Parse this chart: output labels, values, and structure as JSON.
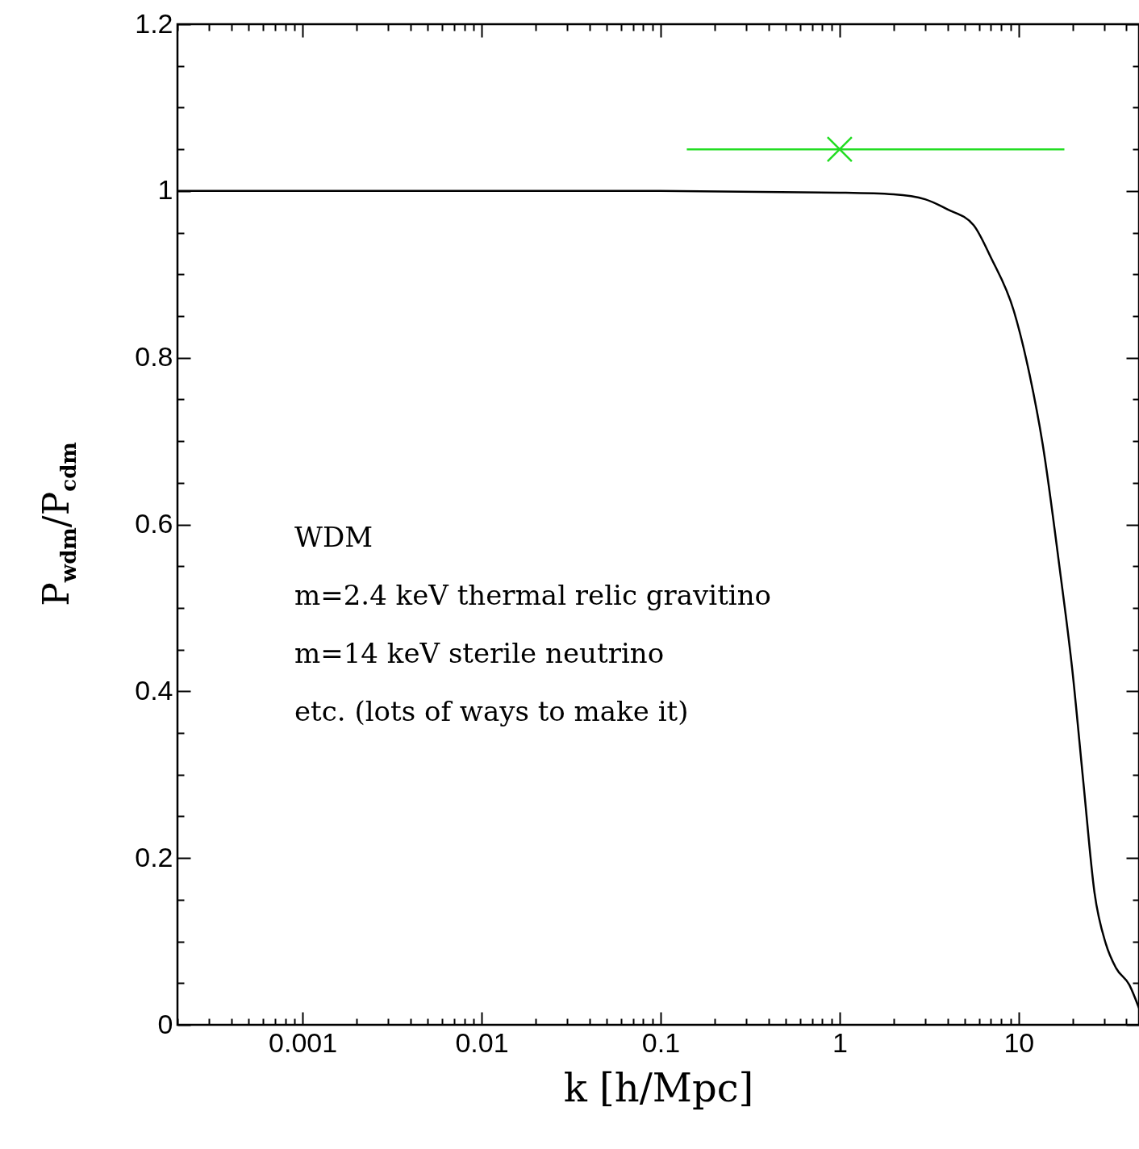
{
  "chart_data": {
    "type": "line",
    "xlabel": "k [h/Mpc]",
    "ylabel": "P$_{wdm}$/P$_{cdm}$",
    "log": "x",
    "grid": false,
    "xlim": [
      0.0002,
      47
    ],
    "ylim": [
      0,
      1.2
    ],
    "xticks": [
      {
        "value": 0.0002,
        "label": null
      },
      {
        "value": 0.0003,
        "label": null
      },
      {
        "value": 0.0004,
        "label": null
      },
      {
        "value": 0.0005,
        "label": null
      },
      {
        "value": 0.0006,
        "label": null
      },
      {
        "value": 0.0007,
        "label": null
      },
      {
        "value": 0.0008,
        "label": null
      },
      {
        "value": 0.0009,
        "label": null
      },
      0.001,
      {
        "value": 0.002,
        "label": null
      },
      {
        "value": 0.003,
        "label": null
      },
      {
        "value": 0.004,
        "label": null
      },
      {
        "value": 0.005,
        "label": null
      },
      {
        "value": 0.006,
        "label": null
      },
      {
        "value": 0.007,
        "label": null
      },
      {
        "value": 0.008,
        "label": null
      },
      {
        "value": 0.009,
        "label": null
      },
      0.01,
      {
        "value": 0.02,
        "label": null
      },
      {
        "value": 0.03,
        "label": null
      },
      {
        "value": 0.04,
        "label": null
      },
      {
        "value": 0.05,
        "label": null
      },
      {
        "value": 0.06,
        "label": null
      },
      {
        "value": 0.07,
        "label": null
      },
      {
        "value": 0.08,
        "label": null
      },
      {
        "value": 0.09,
        "label": null
      },
      0.1,
      {
        "value": 0.2,
        "label": null
      },
      {
        "value": 0.3,
        "label": null
      },
      {
        "value": 0.4,
        "label": null
      },
      {
        "value": 0.5,
        "label": null
      },
      {
        "value": 0.6,
        "label": null
      },
      {
        "value": 0.7,
        "label": null
      },
      {
        "value": 0.8,
        "label": null
      },
      {
        "value": 0.9,
        "label": null
      },
      1,
      {
        "value": 2,
        "label": null
      },
      {
        "value": 3,
        "label": null
      },
      {
        "value": 4,
        "label": null
      },
      {
        "value": 5,
        "label": null
      },
      {
        "value": 6,
        "label": null
      },
      {
        "value": 7,
        "label": null
      },
      {
        "value": 8,
        "label": null
      },
      {
        "value": 9,
        "label": null
      },
      10,
      {
        "value": 20,
        "label": null
      },
      {
        "value": 30,
        "label": null
      },
      {
        "value": 40,
        "label": null
      }
    ],
    "yticks": [
      0,
      {
        "value": 0.05,
        "label": null
      },
      {
        "value": 0.1,
        "label": null
      },
      {
        "value": 0.15,
        "label": null
      },
      0.2,
      {
        "value": 0.25,
        "label": null
      },
      {
        "value": 0.3,
        "label": null
      },
      {
        "value": 0.35,
        "label": null
      },
      0.4,
      {
        "value": 0.45,
        "label": null
      },
      {
        "value": 0.5,
        "label": null
      },
      {
        "value": 0.55,
        "label": null
      },
      0.6,
      {
        "value": 0.65,
        "label": null
      },
      {
        "value": 0.7,
        "label": null
      },
      {
        "value": 0.75,
        "label": null
      },
      0.8,
      {
        "value": 0.85,
        "label": null
      },
      {
        "value": 0.9,
        "label": null
      },
      {
        "value": 0.95,
        "label": null
      },
      1,
      {
        "value": 1.05,
        "label": null
      },
      {
        "value": 1.1,
        "label": null
      },
      {
        "value": 1.15,
        "label": null
      },
      1.2
    ],
    "annotations": [
      "WDM",
      "m=2.4 keV thermal relic gravitino",
      "m=14 keV sterile neutrino",
      "etc. (lots of ways to make it)"
    ],
    "series": [
      {
        "type": "line",
        "color": "#000000",
        "x": [
          0.0002,
          0.01,
          0.1,
          1,
          2,
          3,
          4,
          5.6,
          7,
          9.4,
          11.5,
          13.6,
          17,
          19.9,
          23,
          26.5,
          30.7,
          35,
          41.5,
          47
        ],
        "values": [
          1,
          1,
          1,
          0.998,
          0.996,
          0.99,
          0.978,
          0.959,
          0.92,
          0.856,
          0.78,
          0.697,
          0.545,
          0.427,
          0.29,
          0.159,
          0.097,
          0.068,
          0.048,
          0.02
        ]
      },
      {
        "type": "scatter",
        "color": "#22dd22",
        "marker": "cross",
        "x": [
          1
        ],
        "values": [
          1.05
        ],
        "xerrors": [
          [
            0.14,
            18
          ]
        ]
      }
    ]
  }
}
